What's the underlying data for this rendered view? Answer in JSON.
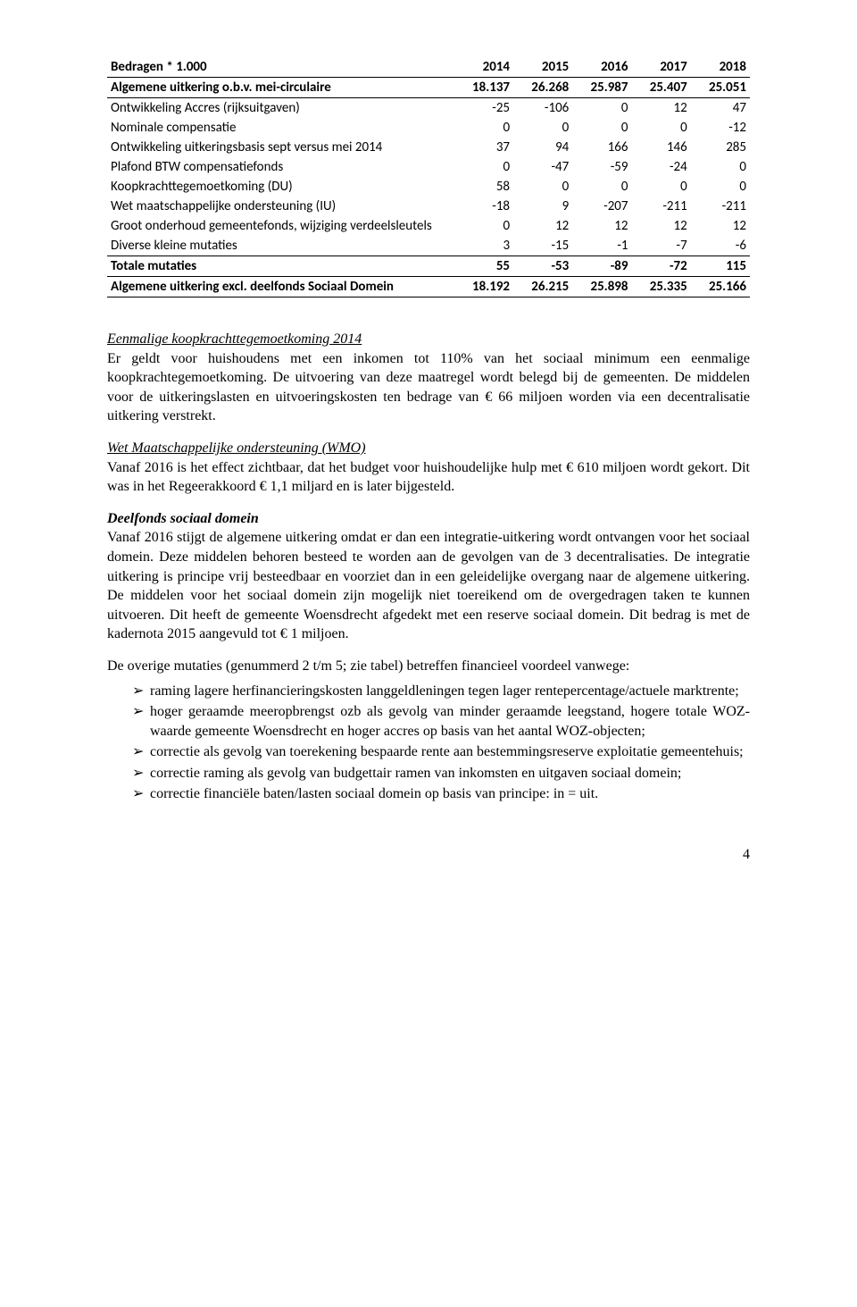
{
  "table": {
    "header": [
      "Bedragen * 1.000",
      "2014",
      "2015",
      "2016",
      "2017",
      "2018"
    ],
    "row_algemene_obv": [
      "Algemene uitkering o.b.v. mei-circulaire",
      "18.137",
      "26.268",
      "25.987",
      "25.407",
      "25.051"
    ],
    "rows_mid": [
      [
        "Ontwikkeling Accres (rijksuitgaven)",
        "-25",
        "-106",
        "0",
        "12",
        "47"
      ],
      [
        "Nominale compensatie",
        "0",
        "0",
        "0",
        "0",
        "-12"
      ],
      [
        "Ontwikkeling uitkeringsbasis sept versus mei 2014",
        "37",
        "94",
        "166",
        "146",
        "285"
      ],
      [
        "Plafond BTW compensatiefonds",
        "0",
        "-47",
        "-59",
        "-24",
        "0"
      ],
      [
        "Koopkrachttegemoetkoming (DU)",
        "58",
        "0",
        "0",
        "0",
        "0"
      ],
      [
        "Wet maatschappelijke ondersteuning (IU)",
        "-18",
        "9",
        "-207",
        "-211",
        "-211"
      ],
      [
        "Groot onderhoud gemeentefonds, wijziging verdeelsleutels",
        "0",
        "12",
        "12",
        "12",
        "12"
      ],
      [
        "Diverse kleine mutaties",
        "3",
        "-15",
        "-1",
        "-7",
        "-6"
      ]
    ],
    "row_totale_mut": [
      "Totale mutaties",
      "55",
      "-53",
      "-89",
      "-72",
      "115"
    ],
    "row_algemene_excl": [
      "Algemene uitkering excl. deelfonds Sociaal Domein",
      "18.192",
      "26.215",
      "25.898",
      "25.335",
      "25.166"
    ]
  },
  "section1": {
    "heading": "Eenmalige koopkrachttegemoetkoming 2014",
    "body": "Er geldt voor huishoudens met een inkomen tot 110% van het sociaal minimum een eenmalige koopkrachtegemoetkoming. De uitvoering van deze maatregel wordt belegd bij de gemeenten. De middelen voor de uitkeringslasten en uitvoeringskosten ten bedrage van € 66 miljoen worden via een decentralisatie uitkering verstrekt."
  },
  "section2": {
    "heading": "Wet Maatschappelijke ondersteuning (WMO)",
    "body": "Vanaf 2016 is het effect zichtbaar, dat het budget voor huishoudelijke hulp met € 610 miljoen wordt gekort. Dit was in het Regeerakkoord € 1,1 miljard en is later bijgesteld."
  },
  "section3": {
    "heading": "Deelfonds sociaal domein",
    "body": "Vanaf 2016 stijgt de algemene uitkering omdat er dan een integratie-uitkering wordt ontvangen voor het sociaal domein. Deze middelen behoren besteed te worden aan de gevolgen van de 3 decentralisaties. De integratie uitkering is principe vrij besteedbaar en voorziet dan in een geleidelijke overgang naar de algemene uitkering. De middelen voor het sociaal domein zijn mogelijk niet toereikend om de overgedragen taken te kunnen uitvoeren. Dit heeft de gemeente Woensdrecht afgedekt met een reserve sociaal domein. Dit bedrag is met de kadernota 2015 aangevuld tot € 1  miljoen."
  },
  "list_intro": "De overige mutaties (genummerd 2 t/m 5; zie tabel) betreffen financieel voordeel vanwege:",
  "list": [
    "raming lagere herfinancieringskosten langgeldleningen tegen lager rentepercentage/actuele  marktrente;",
    "hoger geraamde meeropbrengst ozb als gevolg van minder geraamde leegstand, hogere totale WOZ-waarde gemeente Woensdrecht en hoger accres  op basis van het aantal WOZ-objecten;",
    "correctie als gevolg van toerekening bespaarde rente aan bestemmingsreserve exploitatie gemeentehuis;",
    "correctie raming als gevolg van budgettair ramen van inkomsten en uitgaven sociaal domein;",
    "correctie financiële baten/lasten sociaal domein op basis van principe: in = uit."
  ],
  "page_number": "4"
}
